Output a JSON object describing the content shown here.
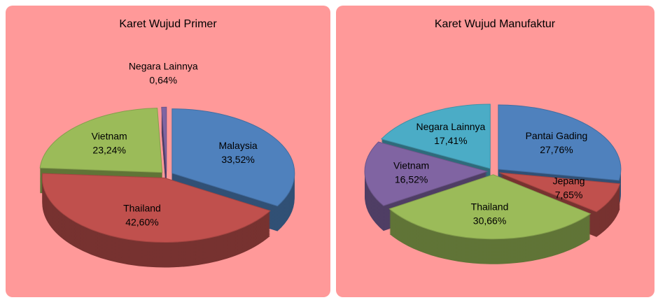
{
  "chart_data": [
    {
      "type": "pie",
      "title": "Karet Wujud Primer",
      "categories": [
        "Malaysia",
        "Thailand",
        "Vietnam",
        "Negara Lainnya"
      ],
      "values": [
        33.52,
        42.6,
        23.24,
        0.64
      ],
      "value_labels": [
        "33,52%",
        "42,60%",
        "23,24%",
        "0,64%"
      ],
      "colors": [
        "#4f81bd",
        "#c0504d",
        "#9bbb59",
        "#8064a2"
      ]
    },
    {
      "type": "pie",
      "title": "Karet Wujud Manufaktur",
      "categories": [
        "Pantai Gading",
        "Jepang",
        "Thailand",
        "Vietnam",
        "Negara Lainnya"
      ],
      "values": [
        27.76,
        7.65,
        30.66,
        16.52,
        17.41
      ],
      "value_labels": [
        "27,76%",
        "7,65%",
        "30,66%",
        "16,52%",
        "17,41%"
      ],
      "colors": [
        "#4f81bd",
        "#c0504d",
        "#9bbb59",
        "#8064a2",
        "#4bacc6"
      ]
    }
  ]
}
